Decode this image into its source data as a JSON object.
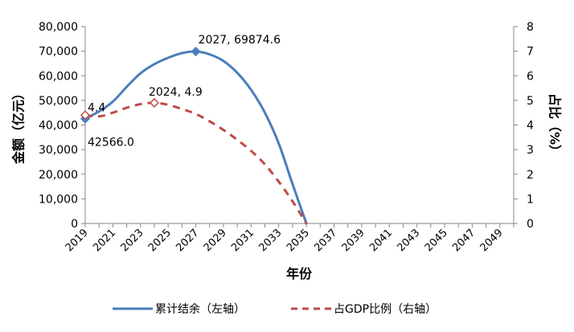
{
  "chart_data": {
    "type": "line",
    "xlabel": "年份",
    "ylabel_left": "金额（亿元）",
    "ylabel_right": "占比（%）",
    "x_ticks": [
      "2019",
      "2021",
      "2023",
      "2025",
      "2027",
      "2029",
      "2031",
      "2033",
      "2035",
      "2037",
      "2039",
      "2041",
      "2043",
      "2045",
      "2047",
      "2049"
    ],
    "x_range": [
      2019,
      2050
    ],
    "y_left_ticks": [
      "80,000",
      "70,000",
      "60,000",
      "50,000",
      "40,000",
      "30,000",
      "20,000",
      "10,000",
      "0"
    ],
    "y_left_range": [
      0,
      80000
    ],
    "y_right_ticks": [
      "8",
      "7",
      "6",
      "5",
      "4",
      "3",
      "2",
      "1",
      "0"
    ],
    "y_right_range": [
      0,
      8
    ],
    "grid": false,
    "legend_position": "bottom",
    "series": [
      {
        "name": "累计结余（左轴）",
        "axis": "left",
        "color": "#4a7ebb",
        "style": "solid",
        "x": [
          2019,
          2020,
          2021,
          2022,
          2023,
          2024,
          2025,
          2026,
          2027,
          2028,
          2029,
          2030,
          2031,
          2032,
          2033,
          2034,
          2035
        ],
        "values": [
          42566.0,
          45500,
          49500,
          55500,
          61000,
          64700,
          67300,
          69200,
          69874.6,
          68700,
          66000,
          61200,
          54300,
          45000,
          32500,
          16000,
          0
        ]
      },
      {
        "name": "占GDP比例（右轴）",
        "axis": "right",
        "color": "#be4b48",
        "style": "dashed",
        "x": [
          2019,
          2020,
          2021,
          2022,
          2023,
          2024,
          2025,
          2026,
          2027,
          2028,
          2029,
          2030,
          2031,
          2032,
          2033,
          2034,
          2035
        ],
        "values": [
          4.4,
          4.35,
          4.5,
          4.7,
          4.85,
          4.9,
          4.82,
          4.65,
          4.45,
          4.15,
          3.8,
          3.4,
          2.95,
          2.4,
          1.7,
          0.9,
          0
        ]
      }
    ],
    "annotations": [
      {
        "series": 0,
        "x": 2027,
        "label": "2027, 69874.6"
      },
      {
        "series": 0,
        "x": 2019,
        "label": "42566.0"
      },
      {
        "series": 1,
        "x": 2024,
        "label": "2024, 4.9"
      },
      {
        "series": 1,
        "x": 2019,
        "label": "4.4"
      }
    ]
  }
}
